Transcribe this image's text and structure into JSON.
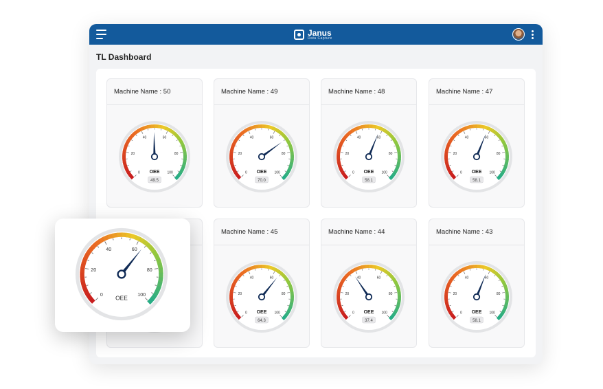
{
  "app": {
    "name": "Janus",
    "tagline": "Data Capture"
  },
  "header": {
    "menu_icon": "hamburger-menu-icon",
    "user_icon": "user-avatar",
    "more_icon": "vertical-dots-icon"
  },
  "page": {
    "title": "TL Dashboard"
  },
  "gauge_scale": {
    "ticks": [
      "0",
      "20",
      "40",
      "60",
      "80",
      "100"
    ],
    "label": "OEE"
  },
  "machines": [
    {
      "title": "Machine Name : 50",
      "oee": 49.5,
      "value_text": "49.5"
    },
    {
      "title": "Machine Name : 49",
      "oee": 70.0,
      "value_text": "70.0"
    },
    {
      "title": "Machine Name : 48",
      "oee": 58.1,
      "value_text": "58.1"
    },
    {
      "title": "Machine Name : 47",
      "oee": 58.1,
      "value_text": "58.1"
    },
    {
      "title": "",
      "oee": null,
      "value_text": ""
    },
    {
      "title": "Machine Name : 45",
      "oee": 64.3,
      "value_text": "64.3"
    },
    {
      "title": "Machine Name : 44",
      "oee": 37.4,
      "value_text": "37.4"
    },
    {
      "title": "Machine Name : 43",
      "oee": 58.1,
      "value_text": "58.1"
    }
  ],
  "zoomed_gauge": {
    "oee": 64.3
  }
}
